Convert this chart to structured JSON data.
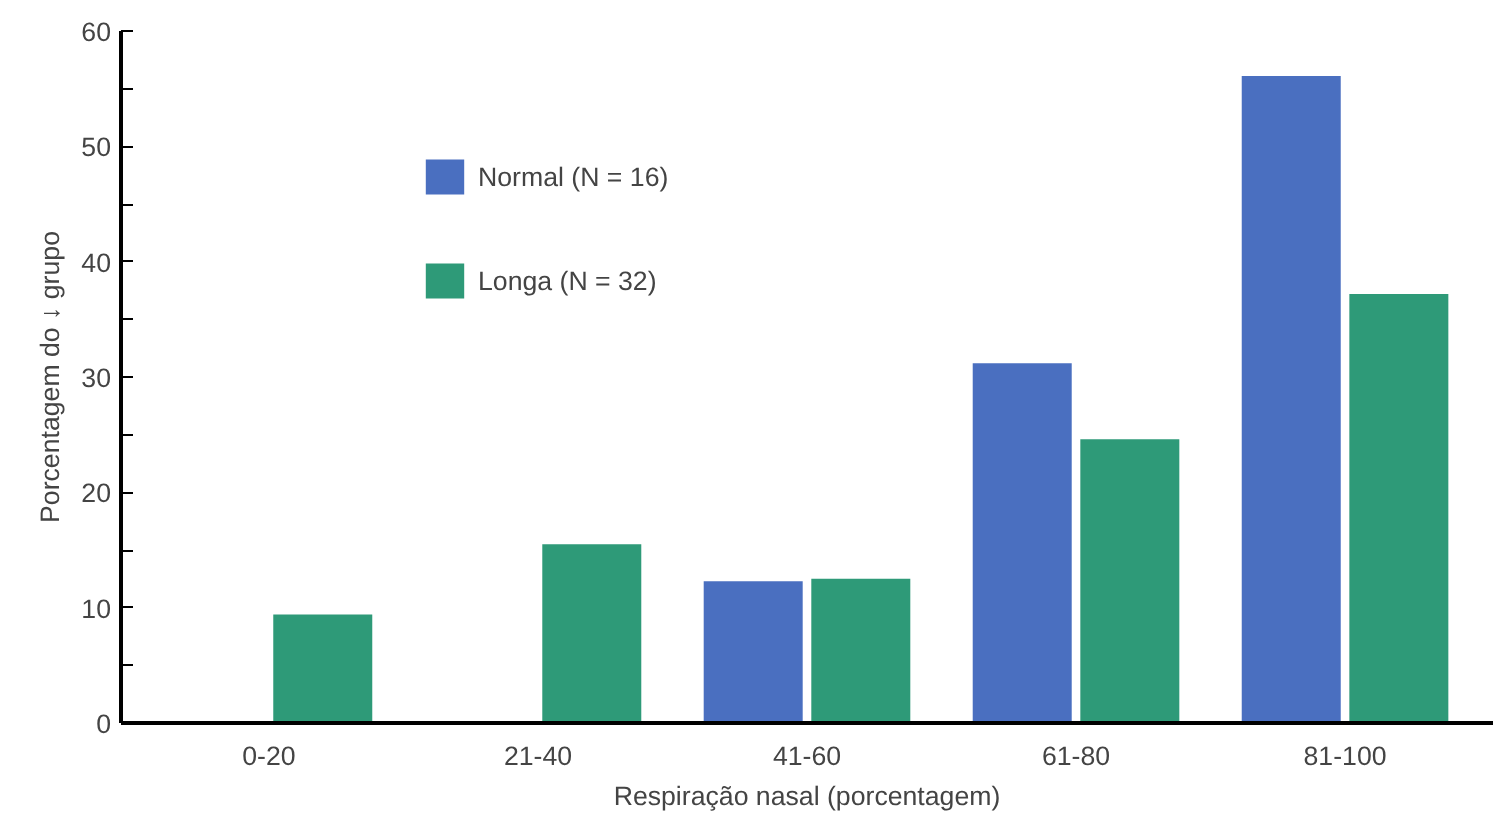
{
  "chart_data": {
    "type": "bar",
    "xlabel": "Respiração nasal (porcentagem)",
    "ylabel": "Porcentagem do ↓ grupo",
    "categories": [
      "0-20",
      "21-40",
      "41-60",
      "61-80",
      "81-100"
    ],
    "series": [
      {
        "name": "Normal (N = 16)",
        "color": "#4a6fc0",
        "values": [
          0,
          0,
          12.3,
          31.2,
          56.1
        ]
      },
      {
        "name": "Longa (N = 32)",
        "color": "#2e9a78",
        "values": [
          9.4,
          15.5,
          12.5,
          24.6,
          37.2
        ]
      }
    ],
    "ylim": [
      0,
      60
    ],
    "yticks": [
      0,
      {
        "value": 5,
        "label": null
      },
      10,
      {
        "value": 15,
        "label": null
      },
      20,
      {
        "value": 25,
        "label": null
      },
      30,
      {
        "value": 35,
        "label": null
      },
      40,
      {
        "value": 45,
        "label": null
      },
      50,
      {
        "value": 55,
        "label": null
      },
      60
    ],
    "grid": false,
    "legend": "top left"
  }
}
